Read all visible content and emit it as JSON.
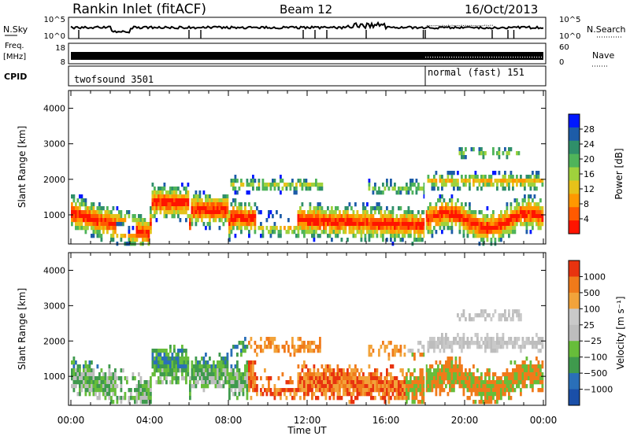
{
  "header": {
    "station": "Rankin Inlet (fitACF)",
    "beam": "Beam 12",
    "date": "16/Oct/2013"
  },
  "noise_panel": {
    "left_label": "N.Sky",
    "right_label": "N.Search",
    "left_ticks": [
      "10^5",
      "10^0"
    ],
    "right_ticks": [
      "10^5",
      "10^0"
    ]
  },
  "freq_panel": {
    "left_label_1": "Freq.",
    "left_label_2": "[MHz]",
    "right_label": "Nave",
    "left_ticks": [
      "18",
      "8"
    ],
    "right_ticks": [
      "60",
      "0"
    ]
  },
  "cpid": {
    "label": "CPID",
    "modes": [
      {
        "name": "twofsound 3501",
        "start_hour": 0,
        "end_hour": 18
      },
      {
        "name": "normal (fast) 151",
        "start_hour": 18,
        "end_hour": 24
      }
    ]
  },
  "colors": {
    "power_scale": [
      "#0018ff",
      "#1d5ca8",
      "#2f8f6a",
      "#4fb45a",
      "#9fd23c",
      "#e6c219",
      "#ff9800",
      "#ff5a00",
      "#ff1400"
    ],
    "velocity_scale": [
      "#1a4fa8",
      "#2a6fb8",
      "#3f9a4d",
      "#67bd3a",
      "#bdbdbd",
      "#c9c9c9",
      "#f2a33a",
      "#f07a1a",
      "#e8330f"
    ]
  },
  "time_axis": {
    "label": "Time UT",
    "ticks": [
      "00:00",
      "04:00",
      "08:00",
      "12:00",
      "16:00",
      "20:00",
      "00:00"
    ]
  },
  "chart_data": [
    {
      "type": "heatmap",
      "name": "power",
      "ylabel": "Slant Range [km]",
      "yticks": [
        1000,
        2000,
        3000,
        4000
      ],
      "ylim": [
        180,
        4500
      ],
      "xlim_hours": [
        0,
        24
      ],
      "colorbar": {
        "label": "Power [dB]",
        "ticks": [
          "28",
          "24",
          "20",
          "16",
          "12",
          "8",
          "4"
        ],
        "range": [
          0,
          30
        ]
      }
    },
    {
      "type": "heatmap",
      "name": "velocity",
      "ylabel": "Slant Range [km]",
      "yticks": [
        1000,
        2000,
        3000,
        4000
      ],
      "ylim": [
        180,
        4500
      ],
      "xlim_hours": [
        0,
        24
      ],
      "colorbar": {
        "label": "Velocity [m s⁻¹]",
        "ticks": [
          "1000",
          "500",
          "100",
          "25",
          "−25",
          "−100",
          "−500",
          "−1000"
        ]
      }
    }
  ]
}
